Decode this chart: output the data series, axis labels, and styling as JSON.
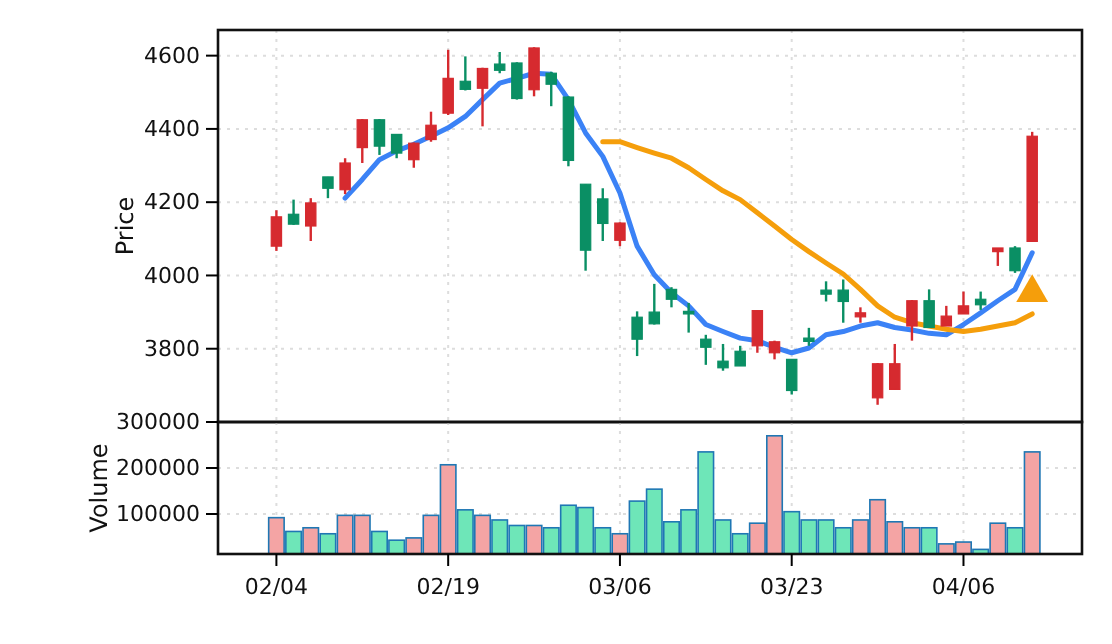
{
  "chart_data": [
    {
      "type": "candlestick",
      "ylabel": "Price",
      "categories": [
        null,
        null,
        null,
        null,
        null,
        null,
        null,
        null,
        null,
        null,
        null,
        null,
        null,
        null,
        null,
        null,
        null,
        null,
        null,
        null,
        null,
        null,
        null,
        null,
        null,
        null,
        null,
        null,
        null,
        null,
        null,
        null,
        null,
        null,
        null,
        null,
        null,
        null,
        null,
        null,
        null,
        null,
        null,
        null,
        null
      ],
      "ohlc": [
        [
          4080,
          4178,
          4067,
          4160
        ],
        [
          4167,
          4207,
          4138,
          4140
        ],
        [
          4135,
          4211,
          4094,
          4198
        ],
        [
          4269,
          4269,
          4211,
          4238
        ],
        [
          4234,
          4320,
          4222,
          4307
        ],
        [
          4349,
          4427,
          4307,
          4425
        ],
        [
          4425,
          4427,
          4329,
          4353
        ],
        [
          4385,
          4385,
          4320,
          4334
        ],
        [
          4316,
          4363,
          4294,
          4361
        ],
        [
          4371,
          4447,
          4365,
          4410
        ],
        [
          4443,
          4616,
          4438,
          4538
        ],
        [
          4530,
          4598,
          4505,
          4508
        ],
        [
          4511,
          4567,
          4407,
          4565
        ],
        [
          4577,
          4610,
          4552,
          4560
        ],
        [
          4580,
          4582,
          4480,
          4483
        ],
        [
          4507,
          4623,
          4489,
          4621
        ],
        [
          4552,
          4556,
          4462,
          4522
        ],
        [
          4487,
          4489,
          4298,
          4314
        ],
        [
          4249,
          4249,
          4013,
          4069
        ],
        [
          4209,
          4238,
          4094,
          4142
        ],
        [
          4096,
          4145,
          4080,
          4143
        ],
        [
          3886,
          3902,
          3780,
          3826
        ],
        [
          3900,
          3977,
          3866,
          3868
        ],
        [
          3962,
          3968,
          3913,
          3935
        ],
        [
          3902,
          3925,
          3844,
          3895
        ],
        [
          3826,
          3838,
          3756,
          3804
        ],
        [
          3766,
          3813,
          3740,
          3748
        ],
        [
          3793,
          3808,
          3753,
          3753
        ],
        [
          3808,
          3904,
          3789,
          3904
        ],
        [
          3789,
          3822,
          3771,
          3819
        ],
        [
          3771,
          3771,
          3675,
          3686
        ],
        [
          3829,
          3857,
          3808,
          3820
        ],
        [
          3960,
          3984,
          3929,
          3949
        ],
        [
          3960,
          3989,
          3871,
          3929
        ],
        [
          3887,
          3913,
          3871,
          3898
        ],
        [
          3666,
          3761,
          3647,
          3759
        ],
        [
          3689,
          3813,
          3689,
          3759
        ],
        [
          3862,
          3933,
          3822,
          3931
        ],
        [
          3931,
          3962,
          3858,
          3858
        ],
        [
          3862,
          3917,
          3862,
          3889
        ],
        [
          3895,
          3956,
          3895,
          3917
        ],
        [
          3935,
          3956,
          3906,
          3920
        ],
        [
          4065,
          4075,
          4026,
          4075
        ],
        [
          4075,
          4080,
          4007,
          4013
        ],
        [
          4093,
          4392,
          4093,
          4380
        ]
      ],
      "colors": [
        "#d62a2f",
        "#0a8f64",
        "#d62a2f",
        "#0a8f64",
        "#d62a2f",
        "#d62a2f",
        "#0a8f64",
        "#0a8f64",
        "#d62a2f",
        "#d62a2f",
        "#d62a2f",
        "#0a8f64",
        "#d62a2f",
        "#0a8f64",
        "#0a8f64",
        "#d62a2f",
        "#0a8f64",
        "#0a8f64",
        "#0a8f64",
        "#0a8f64",
        "#d62a2f",
        "#0a8f64",
        "#0a8f64",
        "#0a8f64",
        "#0a8f64",
        "#0a8f64",
        "#0a8f64",
        "#0a8f64",
        "#d62a2f",
        "#d62a2f",
        "#0a8f64",
        "#0a8f64",
        "#0a8f64",
        "#0a8f64",
        "#d62a2f",
        "#d62a2f",
        "#d62a2f",
        "#d62a2f",
        "#0a8f64",
        "#d62a2f",
        "#d62a2f",
        "#0a8f64",
        "#d62a2f",
        "#0a8f64",
        "#d62a2f"
      ],
      "ylim": [
        3600,
        4670
      ],
      "yticks": [
        3800,
        4000,
        4200,
        4400,
        4600
      ],
      "grid": true,
      "tick_labels": "y",
      "series": [
        {
          "type": "line",
          "color": "#3b82f6",
          "values": [
            null,
            null,
            null,
            null,
            4211,
            4262,
            4316,
            4340,
            4358,
            4380,
            4403,
            4434,
            4480,
            4525,
            4538,
            4552,
            4549,
            4480,
            4389,
            4325,
            4225,
            4080,
            4002,
            3953,
            3917,
            3866,
            3847,
            3829,
            3822,
            3804,
            3789,
            3802,
            3838,
            3847,
            3862,
            3871,
            3858,
            3851,
            3842,
            3838,
            3866,
            3898,
            3931,
            3962,
            4062
          ]
        },
        {
          "type": "line",
          "color": "#f59e0b",
          "values": [
            null,
            null,
            null,
            null,
            null,
            null,
            null,
            null,
            null,
            null,
            null,
            null,
            null,
            null,
            null,
            null,
            null,
            null,
            null,
            4365,
            4365,
            4349,
            4334,
            4320,
            4294,
            4262,
            4231,
            4207,
            4171,
            4135,
            4098,
            4065,
            4034,
            4004,
            3962,
            3917,
            3886,
            3871,
            3862,
            3853,
            3847,
            3853,
            3862,
            3871,
            3895
          ]
        },
        {
          "type": "scatter",
          "marker": "triangle",
          "color": "#f59e0b",
          "values": [
            null,
            null,
            null,
            null,
            null,
            null,
            null,
            null,
            null,
            null,
            null,
            null,
            null,
            null,
            null,
            null,
            null,
            null,
            null,
            null,
            null,
            null,
            null,
            null,
            null,
            null,
            null,
            null,
            null,
            null,
            null,
            null,
            null,
            null,
            null,
            null,
            null,
            null,
            null,
            null,
            null,
            null,
            null,
            null,
            3953
          ]
        }
      ]
    },
    {
      "type": "bar",
      "ylabel": "Volume",
      "categories": [
        "02/04",
        null,
        null,
        null,
        null,
        null,
        null,
        null,
        null,
        null,
        "02/19",
        null,
        null,
        null,
        null,
        null,
        null,
        null,
        null,
        null,
        "03/06",
        null,
        null,
        null,
        null,
        null,
        null,
        null,
        null,
        null,
        "03/23",
        null,
        null,
        null,
        null,
        null,
        null,
        null,
        null,
        null,
        "04/06",
        null,
        null,
        null,
        null
      ],
      "values": [
        92000,
        62000,
        70000,
        57000,
        97000,
        97000,
        62000,
        43000,
        48000,
        97000,
        207000,
        109000,
        97000,
        87000,
        75000,
        75000,
        70000,
        119000,
        114000,
        70000,
        57000,
        128000,
        154000,
        83000,
        109000,
        235000,
        87000,
        57000,
        80000,
        270000,
        105000,
        87000,
        87000,
        70000,
        87000,
        131000,
        83000,
        70000,
        70000,
        35000,
        39000,
        23000,
        80000,
        70000,
        235000
      ],
      "colors": [
        "#f4a4a4",
        "#6ee6b8",
        "#f4a4a4",
        "#6ee6b8",
        "#f4a4a4",
        "#f4a4a4",
        "#6ee6b8",
        "#6ee6b8",
        "#f4a4a4",
        "#f4a4a4",
        "#f4a4a4",
        "#6ee6b8",
        "#f4a4a4",
        "#6ee6b8",
        "#6ee6b8",
        "#f4a4a4",
        "#6ee6b8",
        "#6ee6b8",
        "#6ee6b8",
        "#6ee6b8",
        "#f4a4a4",
        "#6ee6b8",
        "#6ee6b8",
        "#6ee6b8",
        "#6ee6b8",
        "#6ee6b8",
        "#6ee6b8",
        "#6ee6b8",
        "#f4a4a4",
        "#f4a4a4",
        "#6ee6b8",
        "#6ee6b8",
        "#6ee6b8",
        "#6ee6b8",
        "#f4a4a4",
        "#f4a4a4",
        "#f4a4a4",
        "#f4a4a4",
        "#6ee6b8",
        "#f4a4a4",
        "#f4a4a4",
        "#6ee6b8",
        "#f4a4a4",
        "#6ee6b8",
        "#f4a4a4"
      ],
      "ylim": [
        13000,
        300000
      ],
      "yticks": [
        100000,
        200000,
        300000
      ],
      "grid": true
    }
  ]
}
